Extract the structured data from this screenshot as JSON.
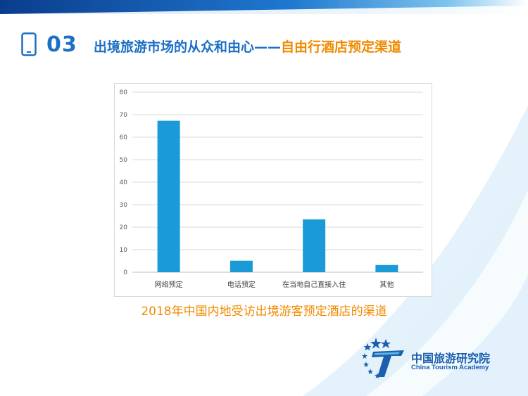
{
  "header": {
    "section_number": "03",
    "title_part1": "出境旅游市场的从众和由心——",
    "title_part2": "自由行酒店预定渠道"
  },
  "caption": "2018年中国内地受访出境游客预定酒店的渠道",
  "logo": {
    "name_cn": "中国旅游研究院",
    "name_en": "China Tourism Academy"
  },
  "colors": {
    "bar": "#1b9ad8",
    "accent_blue": "#1b6fc4",
    "accent_orange": "#f08a00"
  },
  "chart_data": {
    "type": "bar",
    "categories": [
      "网络预定",
      "电话预定",
      "在当地自己直接入住",
      "其他"
    ],
    "values": [
      67.3,
      5.1,
      23.5,
      3.2
    ],
    "ylim": [
      0,
      80
    ],
    "yticks": [
      0,
      10,
      20,
      30,
      40,
      50,
      60,
      70,
      80
    ],
    "grid": true,
    "legend": "none"
  }
}
